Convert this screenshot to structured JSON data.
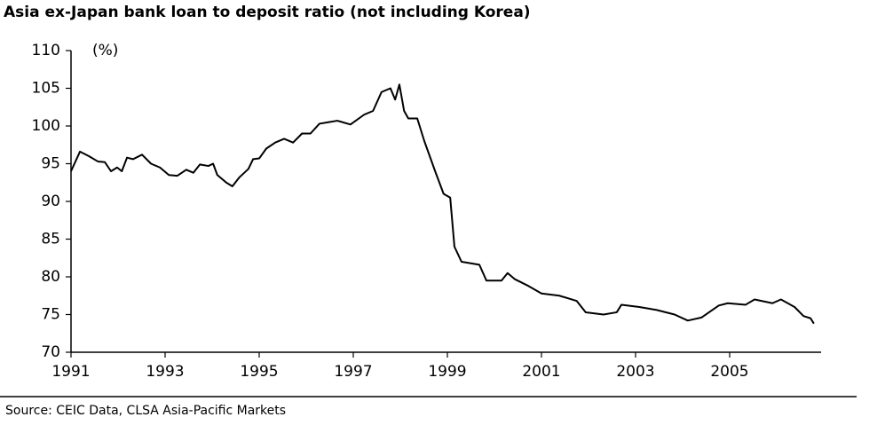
{
  "chart_data": {
    "type": "line",
    "title": "Asia ex-Japan bank loan to deposit ratio (not including Korea)",
    "y_label": "(%)",
    "source": "Source: CEIC Data, CLSA Asia-Pacific Markets",
    "x": [
      1991.0,
      1991.19,
      1991.38,
      1991.57,
      1991.72,
      1991.85,
      1991.98,
      1992.08,
      1992.19,
      1992.32,
      1992.51,
      1992.7,
      1992.89,
      1993.08,
      1993.26,
      1993.45,
      1993.6,
      1993.74,
      1993.92,
      1994.02,
      1994.11,
      1994.3,
      1994.43,
      1994.58,
      1994.77,
      1994.87,
      1995.0,
      1995.15,
      1995.34,
      1995.53,
      1995.72,
      1995.91,
      1996.09,
      1996.28,
      1996.47,
      1996.66,
      1996.94,
      1997.23,
      1997.42,
      1997.6,
      1997.79,
      1997.89,
      1997.98,
      1998.08,
      1998.17,
      1998.36,
      1998.51,
      1998.74,
      1998.92,
      1999.06,
      1999.15,
      1999.3,
      1999.68,
      1999.83,
      2000.15,
      2000.28,
      2000.43,
      2000.72,
      2001.0,
      2001.38,
      2001.75,
      2001.94,
      2002.32,
      2002.6,
      2002.7,
      2003.08,
      2003.45,
      2003.83,
      2004.11,
      2004.4,
      2004.77,
      2004.96,
      2005.34,
      2005.53,
      2005.91,
      2006.09,
      2006.38,
      2006.57,
      2006.72,
      2006.79
    ],
    "series": [
      {
        "name": "Loan to deposit ratio",
        "color": "#000000",
        "values": [
          94.0,
          96.6,
          96.0,
          95.3,
          95.2,
          94.0,
          94.5,
          94.0,
          95.8,
          95.6,
          96.2,
          95.0,
          94.5,
          93.5,
          93.4,
          94.2,
          93.8,
          94.9,
          94.7,
          95.0,
          93.5,
          92.5,
          92.0,
          93.2,
          94.3,
          95.6,
          95.7,
          97.0,
          97.8,
          98.3,
          97.8,
          99.0,
          99.0,
          100.3,
          100.5,
          100.7,
          100.2,
          101.5,
          102.0,
          104.5,
          105.0,
          103.5,
          105.5,
          102.0,
          101.0,
          101.0,
          98.0,
          94.0,
          91.0,
          90.5,
          84.0,
          82.0,
          81.6,
          79.5,
          79.5,
          80.5,
          79.7,
          78.8,
          77.8,
          77.5,
          76.8,
          75.3,
          75.0,
          75.3,
          76.3,
          76.0,
          75.6,
          75.0,
          74.2,
          74.6,
          76.2,
          76.5,
          76.3,
          77.0,
          76.5,
          77.0,
          76.0,
          74.8,
          74.5,
          73.8
        ]
      }
    ],
    "xlim": [
      1991,
      2007
    ],
    "xticks": [
      1991,
      1993,
      1995,
      1997,
      1999,
      2001,
      2003,
      2005
    ],
    "ylim": [
      70,
      110
    ],
    "yticks": [
      70,
      75,
      80,
      85,
      90,
      95,
      100,
      105,
      110
    ],
    "grid": false
  }
}
